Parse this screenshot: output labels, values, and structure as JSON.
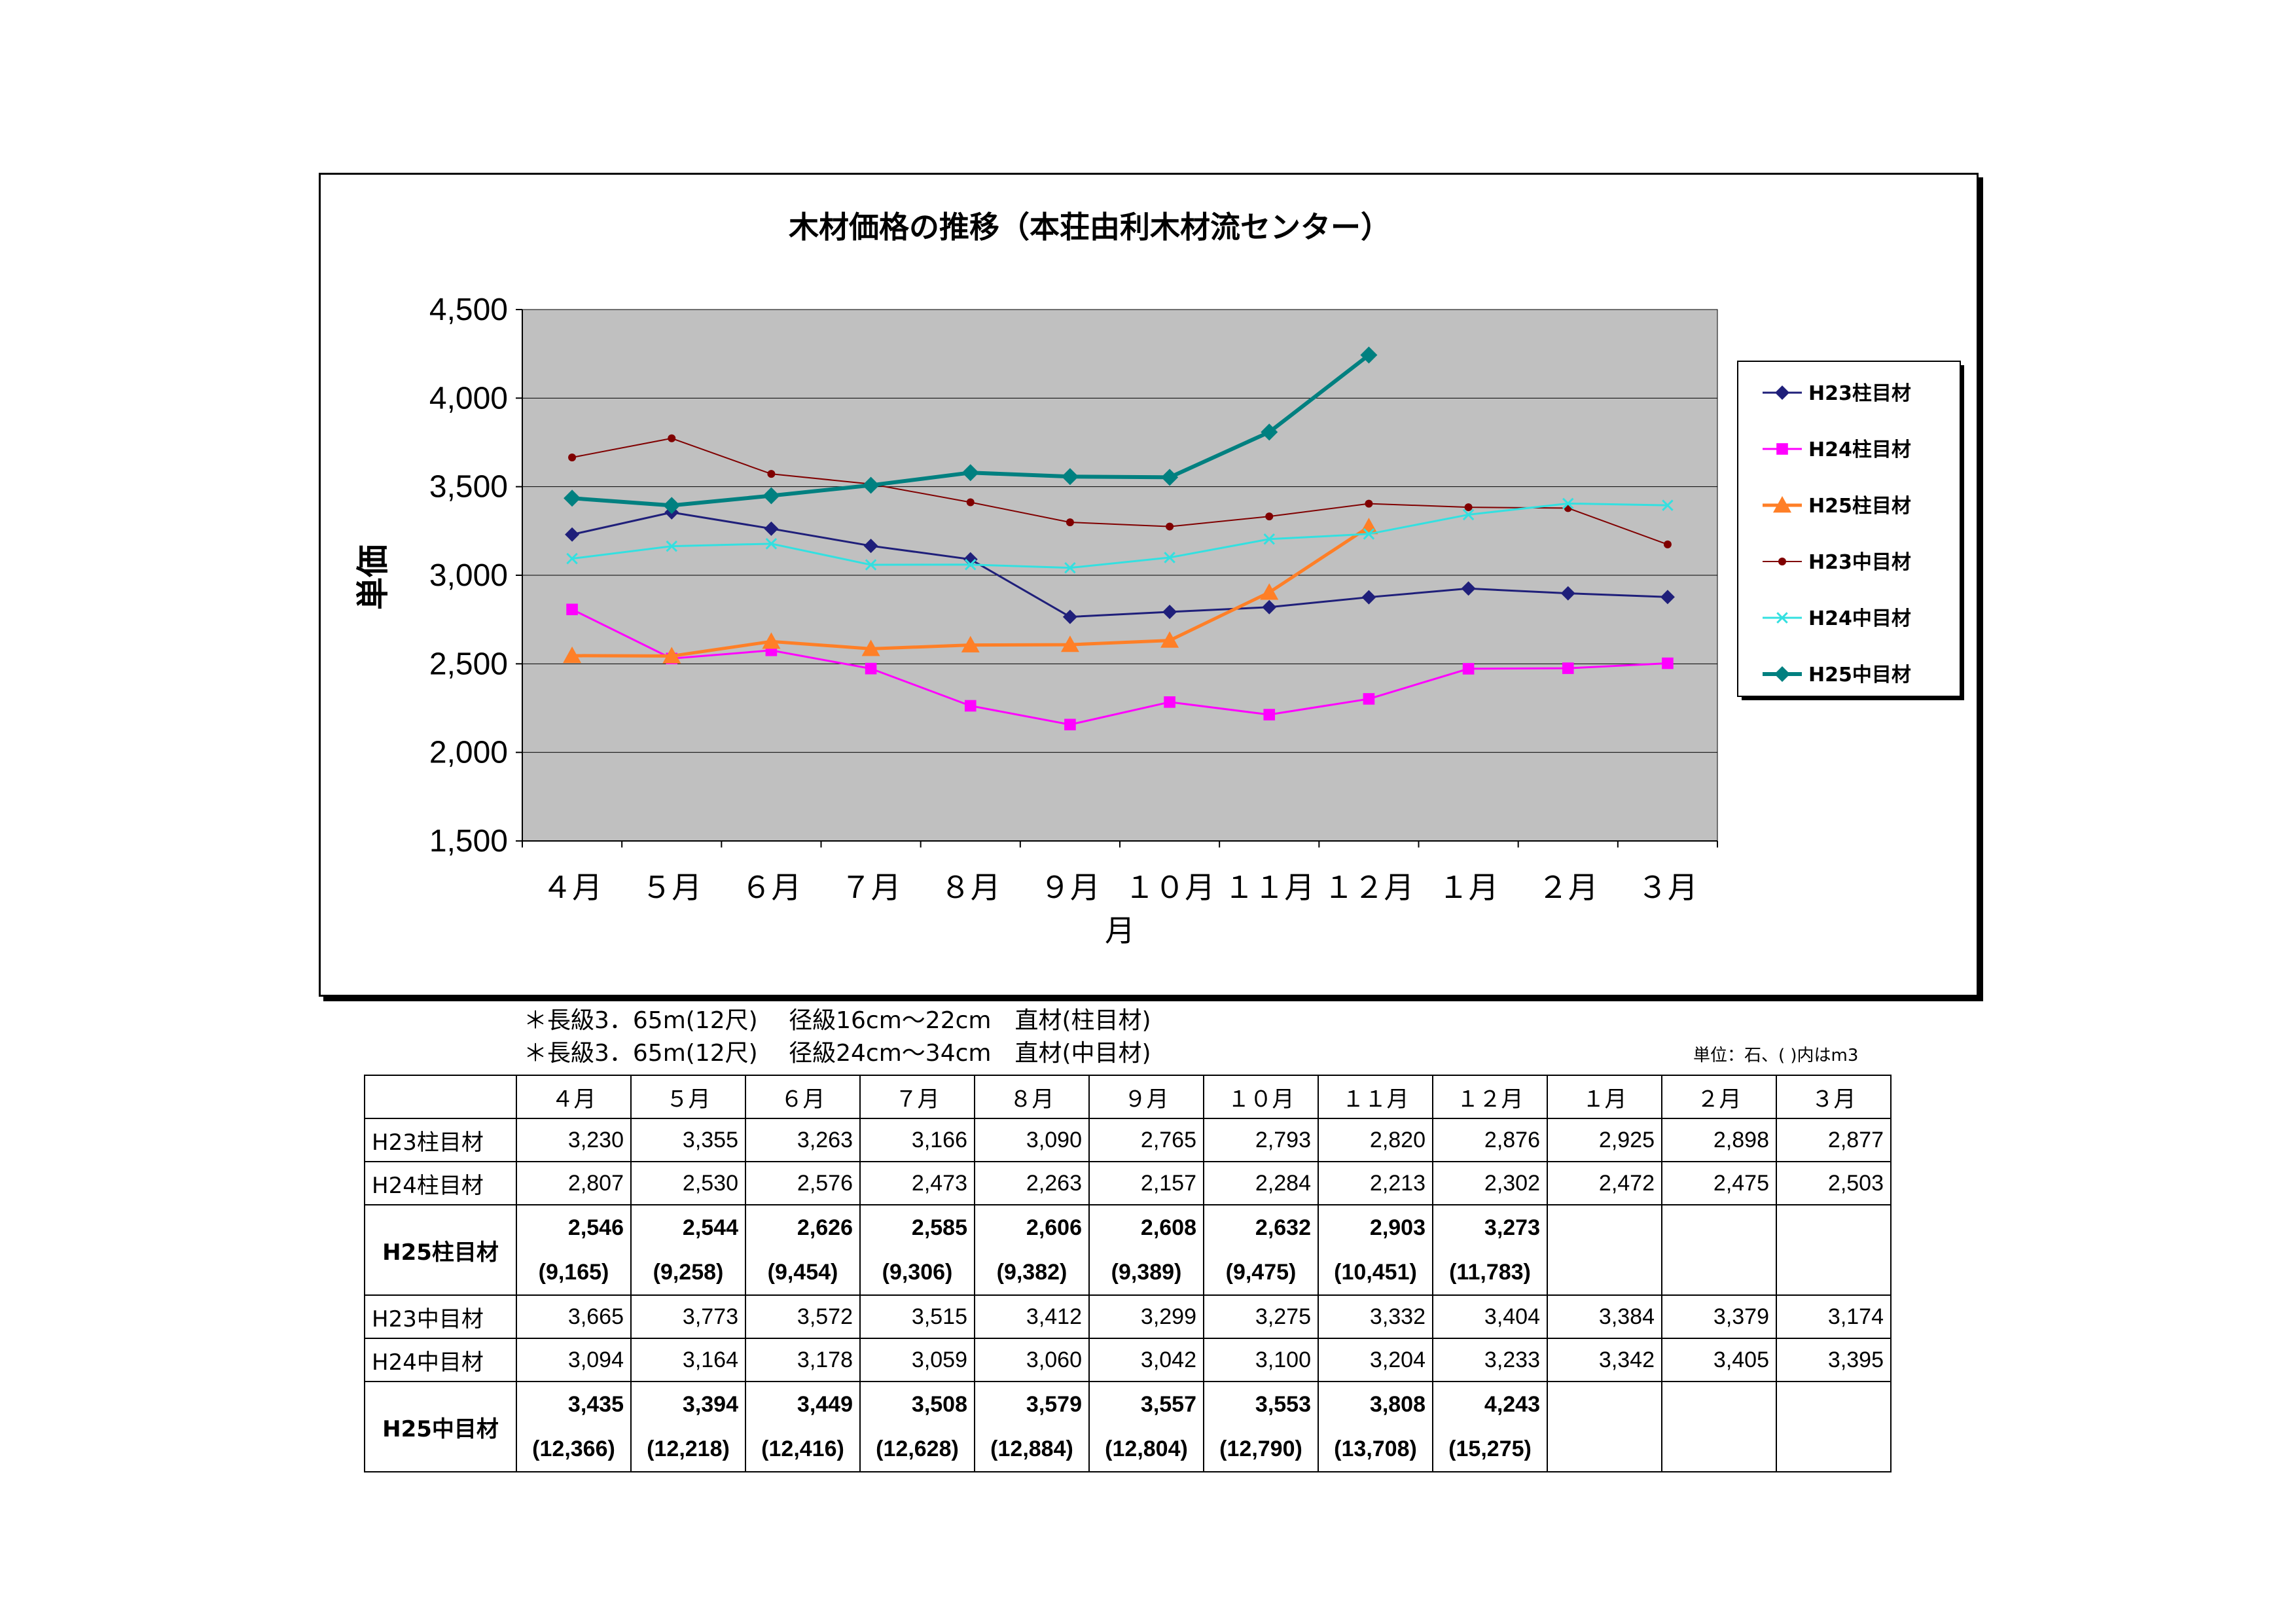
{
  "chart_data": {
    "type": "line",
    "title": "木材価格の推移（本荘由利木材流センター）",
    "xlabel": "月",
    "ylabel": "単価",
    "ylim": [
      1500,
      4500
    ],
    "yticks": [
      "4,500",
      "4,000",
      "3,500",
      "3,000",
      "2,500",
      "2,000",
      "1,500"
    ],
    "ytick_values": [
      4500,
      4000,
      3500,
      3000,
      2500,
      2000,
      1500
    ],
    "categories": [
      "４月",
      "５月",
      "６月",
      "７月",
      "８月",
      "９月",
      "１０月",
      "１１月",
      "１２月",
      "１月",
      "２月",
      "３月"
    ],
    "legend_position": "right",
    "grid": true,
    "series": [
      {
        "name": "H23柱目材",
        "color": "#1F1F7A",
        "marker": "diamond",
        "values": [
          3230,
          3355,
          3263,
          3166,
          3090,
          2765,
          2793,
          2820,
          2876,
          2925,
          2898,
          2877
        ]
      },
      {
        "name": "H24柱目材",
        "color": "#FF00FF",
        "marker": "square",
        "values": [
          2807,
          2530,
          2576,
          2473,
          2263,
          2157,
          2284,
          2213,
          2302,
          2472,
          2475,
          2503
        ]
      },
      {
        "name": "H25柱目材",
        "color": "#FF7F27",
        "marker": "triangle",
        "values": [
          2546,
          2544,
          2626,
          2585,
          2606,
          2608,
          2632,
          2903,
          3273,
          null,
          null,
          null
        ]
      },
      {
        "name": "H23中目材",
        "color": "#800000",
        "marker": "circle",
        "values": [
          3665,
          3773,
          3572,
          3515,
          3412,
          3299,
          3275,
          3332,
          3404,
          3384,
          3379,
          3174
        ]
      },
      {
        "name": "H24中目材",
        "color": "#33E0E0",
        "marker": "x",
        "values": [
          3094,
          3164,
          3178,
          3059,
          3060,
          3042,
          3100,
          3204,
          3233,
          3342,
          3405,
          3395
        ]
      },
      {
        "name": "H25中目材",
        "color": "#008080",
        "marker": "diamond",
        "values": [
          3435,
          3394,
          3449,
          3508,
          3579,
          3557,
          3553,
          3808,
          4243,
          null,
          null,
          null
        ]
      }
    ]
  },
  "notes": {
    "line1": "＊長級3．65m(12尺)　 径級16cm～22cm　直材(柱目材)",
    "line2": "＊長級3．65m(12尺)　 径級24cm～34cm　直材(中目材)",
    "unit": "単位：石、( )内はm3"
  },
  "table": {
    "headers": [
      "",
      "４月",
      "５月",
      "６月",
      "７月",
      "８月",
      "９月",
      "１０月",
      "１１月",
      "１２月",
      "１月",
      "２月",
      "３月"
    ],
    "rows": [
      {
        "label": "H23柱目材",
        "bold": false,
        "values": [
          "3,230",
          "3,355",
          "3,263",
          "3,166",
          "3,090",
          "2,765",
          "2,793",
          "2,820",
          "2,876",
          "2,925",
          "2,898",
          "2,877"
        ]
      },
      {
        "label": "H24柱目材",
        "bold": false,
        "values": [
          "2,807",
          "2,530",
          "2,576",
          "2,473",
          "2,263",
          "2,157",
          "2,284",
          "2,213",
          "2,302",
          "2,472",
          "2,475",
          "2,503"
        ]
      },
      {
        "label": "H25柱目材",
        "bold": true,
        "values": [
          "2,546",
          "2,544",
          "2,626",
          "2,585",
          "2,606",
          "2,608",
          "2,632",
          "2,903",
          "3,273",
          "",
          "",
          ""
        ],
        "sub": [
          "(9,165)",
          "(9,258)",
          "(9,454)",
          "(9,306)",
          "(9,382)",
          "(9,389)",
          "(9,475)",
          "(10,451)",
          "(11,783)",
          "",
          "",
          ""
        ]
      },
      {
        "label": "H23中目材",
        "bold": false,
        "values": [
          "3,665",
          "3,773",
          "3,572",
          "3,515",
          "3,412",
          "3,299",
          "3,275",
          "3,332",
          "3,404",
          "3,384",
          "3,379",
          "3,174"
        ]
      },
      {
        "label": "H24中目材",
        "bold": false,
        "values": [
          "3,094",
          "3,164",
          "3,178",
          "3,059",
          "3,060",
          "3,042",
          "3,100",
          "3,204",
          "3,233",
          "3,342",
          "3,405",
          "3,395"
        ]
      },
      {
        "label": "H25中目材",
        "bold": true,
        "values": [
          "3,435",
          "3,394",
          "3,449",
          "3,508",
          "3,579",
          "3,557",
          "3,553",
          "3,808",
          "4,243",
          "",
          "",
          ""
        ],
        "sub": [
          "(12,366)",
          "(12,218)",
          "(12,416)",
          "(12,628)",
          "(12,884)",
          "(12,804)",
          "(12,790)",
          "(13,708)",
          "(15,275)",
          "",
          "",
          ""
        ]
      }
    ]
  }
}
